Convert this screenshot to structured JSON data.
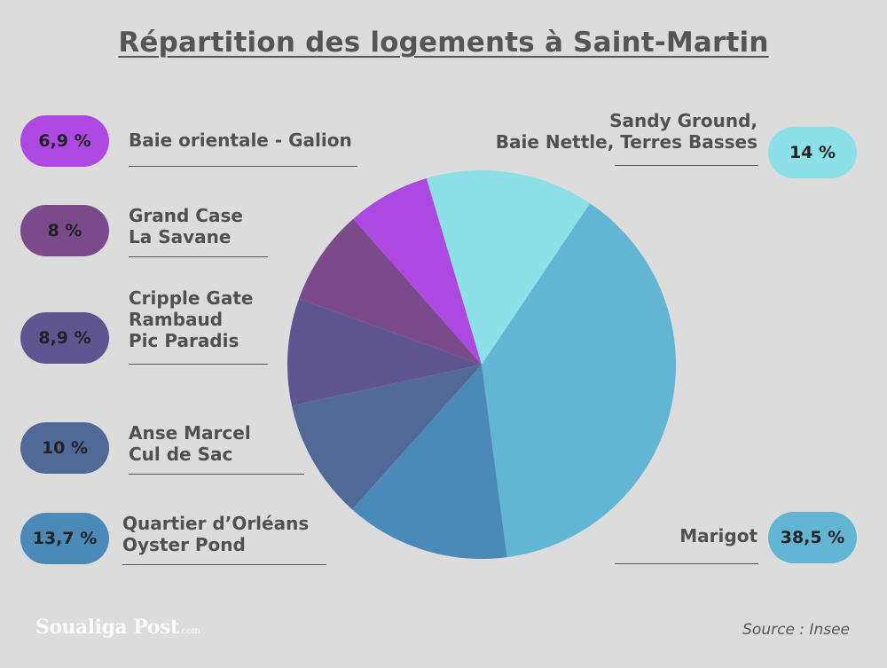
{
  "chart_data": {
    "type": "pie",
    "title": "Répartition des logements à Saint-Martin",
    "slices": [
      {
        "label_lines": [
          "Sandy Ground,",
          "Baie Nettle, Terres Basses"
        ],
        "value": 14,
        "value_label": "14 %",
        "color": "#8de0e8"
      },
      {
        "label_lines": [
          "Marigot"
        ],
        "value": 38.5,
        "value_label": "38,5 %",
        "color": "#63b5d4"
      },
      {
        "label_lines": [
          "Quartier d’Orléans",
          "Oyster Pond"
        ],
        "value": 13.7,
        "value_label": "13,7 %",
        "color": "#4a89b8"
      },
      {
        "label_lines": [
          "Anse Marcel",
          "Cul de Sac"
        ],
        "value": 10,
        "value_label": "10 %",
        "color": "#506996"
      },
      {
        "label_lines": [
          "Cripple Gate",
          "Rambaud",
          "Pic Paradis"
        ],
        "value": 8.9,
        "value_label": "8,9 %",
        "color": "#5f5590"
      },
      {
        "label_lines": [
          "Grand Case",
          "La Savane"
        ],
        "value": 8,
        "value_label": "8 %",
        "color": "#7a4a8a"
      },
      {
        "label_lines": [
          "Baie orientale - Galion"
        ],
        "value": 6.9,
        "value_label": "6,9 %",
        "color": "#ad48e0"
      }
    ]
  },
  "source": "Source : Insee",
  "logo": {
    "name": "Soualiga Post",
    "suffix": ".com"
  }
}
